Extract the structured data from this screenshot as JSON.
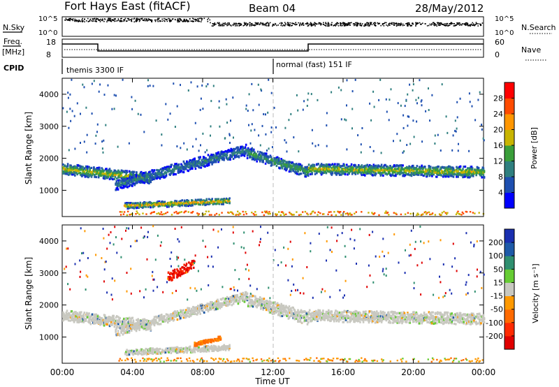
{
  "header": {
    "station": "Fort Hays East (fitACF)",
    "beam": "Beam 04",
    "date": "28/May/2012"
  },
  "top_panels": {
    "nsky_label": "N.Sky",
    "nsky_ticks": [
      "10^5",
      "10^0"
    ],
    "nsearch_label": "N.Search",
    "nsearch_ticks": [
      "10^5",
      "10^0"
    ],
    "freq_label": "Freq.",
    "freq_unit": "[MHz]",
    "freq_ticks": [
      "18",
      "8"
    ],
    "nave_label": "Nave",
    "nave_ticks": [
      "60",
      "0"
    ],
    "cpid_label": "CPID",
    "cpid_modes": [
      "themis 3300 IF",
      "normal (fast) 151 IF"
    ]
  },
  "chart_data": [
    {
      "type": "heatmap",
      "panel": "power",
      "ylabel": "Slant Range [km]",
      "xlabel": "",
      "x_ticks": [
        "00:00",
        "04:00",
        "08:00",
        "12:00",
        "16:00",
        "20:00",
        "00:00"
      ],
      "y_ticks": [
        1000,
        2000,
        3000,
        4000
      ],
      "xlim_hours": [
        0,
        24
      ],
      "ylim_km": [
        180,
        4500
      ],
      "colorbar": {
        "label": "Power [dB]",
        "ticks": [
          4,
          8,
          12,
          16,
          20,
          24,
          28
        ],
        "colors": [
          "#0000ff",
          "#1e4fb0",
          "#2f7f7f",
          "#3a9e3a",
          "#c8b400",
          "#ff9600",
          "#ff4b00",
          "#ff0000"
        ]
      },
      "features": [
        {
          "t_start": 0,
          "t_end": 5,
          "range_start": 1700,
          "range_end": 1400,
          "level": "medium-high"
        },
        {
          "t_start": 3,
          "t_end": 10.5,
          "range_start": 1200,
          "range_end": 2300,
          "level": "low-medium"
        },
        {
          "t_start": 10.5,
          "t_end": 14,
          "range_start": 2200,
          "range_end": 1600,
          "level": "medium"
        },
        {
          "t_start": 14,
          "t_end": 24,
          "range_start": 1700,
          "range_end": 1600,
          "level": "medium-high"
        },
        {
          "t_start": 3.5,
          "t_end": 9.5,
          "range_start": 550,
          "range_end": 700,
          "level": "high"
        }
      ]
    },
    {
      "type": "heatmap",
      "panel": "velocity",
      "ylabel": "Slant Range [km]",
      "xlabel": "Time UT",
      "x_ticks": [
        "00:00",
        "04:00",
        "08:00",
        "12:00",
        "16:00",
        "20:00",
        "00:00"
      ],
      "y_ticks": [
        1000,
        2000,
        3000,
        4000
      ],
      "xlim_hours": [
        0,
        24
      ],
      "ylim_km": [
        180,
        4500
      ],
      "colorbar": {
        "label": "Velocity [m s⁻¹]",
        "ticks": [
          200,
          100,
          50,
          15,
          -15,
          -50,
          -100,
          -200
        ],
        "colors": [
          "#1a2fb0",
          "#1e5aa8",
          "#2f8f6f",
          "#66cc33",
          "#c8c8c0",
          "#ff9900",
          "#ff6a00",
          "#ff2a00",
          "#e00000"
        ]
      },
      "features": [
        {
          "t_start": 0,
          "t_end": 24,
          "range_start": 1600,
          "range_end": 1700,
          "level": "ground scatter (±15)"
        },
        {
          "t_start": 6,
          "t_end": 7.5,
          "range_start": 2900,
          "range_end": 3300,
          "level": "negative (-100 to -200)"
        },
        {
          "t_start": 7.5,
          "t_end": 9,
          "range_start": 800,
          "range_end": 1000,
          "level": "negative (-50)"
        }
      ]
    }
  ],
  "colors": {
    "axis": "#000000",
    "ground_scatter": "#c8c8c0",
    "dashed_line": "#bbbbbb"
  }
}
